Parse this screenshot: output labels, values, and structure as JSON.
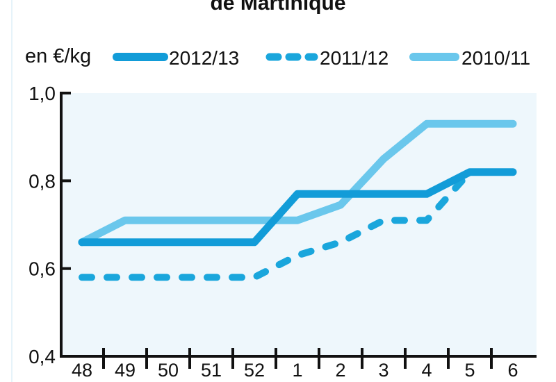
{
  "chart_data": {
    "type": "line",
    "title": "de Martinique",
    "unit_label": "en €/kg",
    "categories": [
      "48",
      "49",
      "50",
      "51",
      "52",
      "1",
      "2",
      "3",
      "4",
      "5",
      "6"
    ],
    "ylim": [
      0.4,
      1.0
    ],
    "y_ticks": [
      "0,4",
      "0,6",
      "0,8",
      "1,0"
    ],
    "y_tick_values": [
      0.4,
      0.6,
      0.8,
      1.0
    ],
    "legend_position": "top",
    "grid": false,
    "series": [
      {
        "name": "2012/13",
        "color": "#129cd8",
        "style": "solid",
        "values": [
          0.66,
          0.66,
          0.66,
          0.66,
          0.66,
          0.77,
          0.77,
          0.77,
          0.77,
          0.82,
          0.82
        ]
      },
      {
        "name": "2011/12",
        "color": "#1aa6dc",
        "style": "dashed",
        "values": [
          0.58,
          0.58,
          0.58,
          0.58,
          0.58,
          0.63,
          0.66,
          0.71,
          0.71,
          0.82,
          0.82
        ]
      },
      {
        "name": "2010/11",
        "color": "#6ac7ec",
        "style": "solid",
        "values": [
          0.66,
          0.71,
          0.71,
          0.71,
          0.71,
          0.71,
          0.745,
          0.85,
          0.93,
          0.93,
          0.93
        ]
      }
    ]
  }
}
